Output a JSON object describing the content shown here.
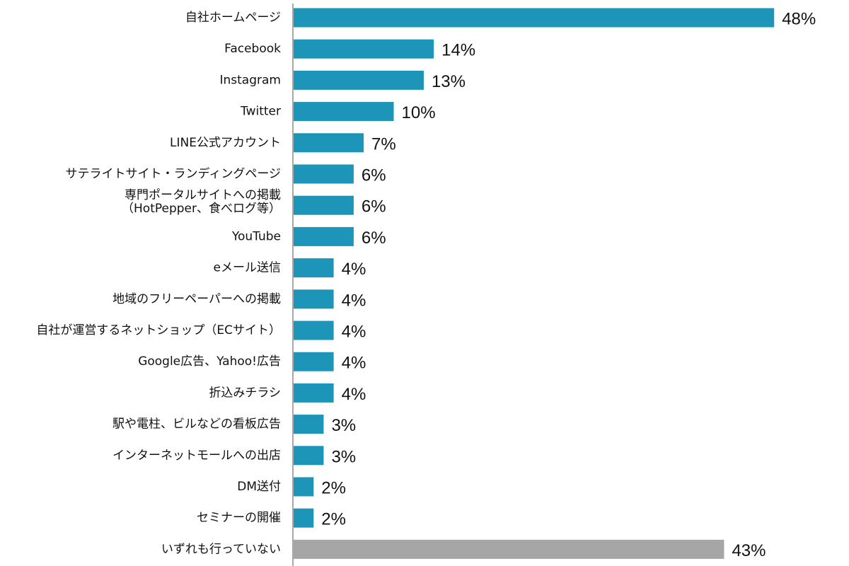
{
  "chart_data": {
    "type": "bar",
    "orientation": "horizontal",
    "categories": [
      "自社ホームページ",
      "Facebook",
      "Instagram",
      "Twitter",
      "LINE公式アカウント",
      "サテライトサイト・ランディングページ",
      "専門ポータルサイトへの掲載\n（HotPepper、食べログ等）",
      "YouTube",
      "eメール送信",
      "地域のフリーペーパーへの掲載",
      "自社が運営するネットショップ（ECサイト）",
      "Google広告、Yahoo!広告",
      "折込みチラシ",
      "駅や電柱、ビルなどの看板広告",
      "インターネットモールへの出店",
      "DM送付",
      "セミナーの開催",
      "いずれも行っていない"
    ],
    "values": [
      48,
      14,
      13,
      10,
      7,
      6,
      6,
      6,
      4,
      4,
      4,
      4,
      4,
      3,
      3,
      2,
      2,
      43
    ],
    "data_labels": [
      "48%",
      "14%",
      "13%",
      "10%",
      "7%",
      "6%",
      "6%",
      "6%",
      "4%",
      "4%",
      "4%",
      "4%",
      "4%",
      "3%",
      "3%",
      "2%",
      "2%",
      "43%"
    ],
    "colors": {
      "bar": "#1c95b8",
      "last_bar": "#a6a6a6"
    },
    "xlim": [
      0,
      50
    ],
    "grid": false,
    "title": "",
    "xlabel": "",
    "ylabel": ""
  }
}
